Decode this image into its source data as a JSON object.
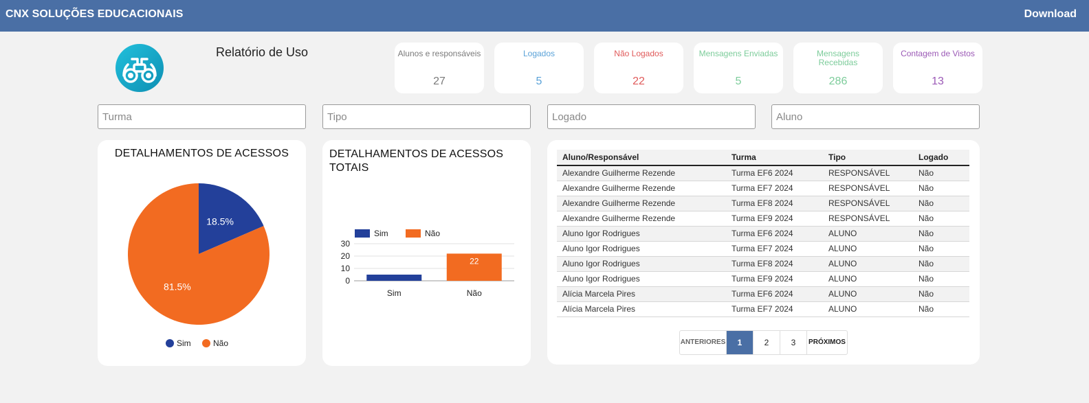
{
  "header": {
    "brand": "CNX SOLUÇÕES EDUCACIONAIS",
    "download": "Download"
  },
  "page": {
    "title": "Relatório de Uso"
  },
  "stats": [
    {
      "label": "Alunos e responsáveis",
      "value": "27",
      "color": "#7a7a7a"
    },
    {
      "label": "Logados",
      "value": "5",
      "color": "#5aa2d8"
    },
    {
      "label": "Não Logados",
      "value": "22",
      "color": "#e05a5a"
    },
    {
      "label": "Mensagens Enviadas",
      "value": "5",
      "color": "#7ccc9a"
    },
    {
      "label": "Mensagens Recebidas",
      "value": "286",
      "color": "#7ccc9a"
    },
    {
      "label": "Contagem de Vistos",
      "value": "13",
      "color": "#9b59b6"
    }
  ],
  "filters": {
    "turma": {
      "placeholder": "Turma",
      "value": ""
    },
    "tipo": {
      "placeholder": "Tipo",
      "value": ""
    },
    "logado": {
      "placeholder": "Logado",
      "value": ""
    },
    "aluno": {
      "placeholder": "Aluno",
      "value": ""
    }
  },
  "colors": {
    "sim": "#23409a",
    "nao": "#f26b21",
    "header": "#4a6fa5"
  },
  "chart_data": [
    {
      "type": "pie",
      "title": "DETALHAMENTOS DE ACESSOS",
      "categories": [
        "Sim",
        "Não"
      ],
      "values": [
        18.5,
        81.5
      ],
      "labels": [
        "18.5%",
        "81.5%"
      ],
      "legend": "bottom"
    },
    {
      "type": "bar",
      "title": "DETALHAMENTOS DE ACESSOS TOTAIS",
      "categories": [
        "Sim",
        "Não"
      ],
      "series": [
        {
          "name": "Sim",
          "values": [
            5,
            null
          ]
        },
        {
          "name": "Não",
          "values": [
            null,
            22
          ]
        }
      ],
      "data_labels": [
        "",
        "22"
      ],
      "yticks": [
        "0",
        "10",
        "20",
        "30"
      ],
      "ylim": [
        0,
        30
      ],
      "grid": true,
      "legend": "top"
    }
  ],
  "table": {
    "columns": [
      "Aluno/Responsável",
      "Turma",
      "Tipo",
      "Logado"
    ],
    "rows": [
      [
        "Alexandre Guilherme Rezende",
        "Turma EF6 2024",
        "RESPONSÁVEL",
        "Não"
      ],
      [
        "Alexandre Guilherme Rezende",
        "Turma EF7 2024",
        "RESPONSÁVEL",
        "Não"
      ],
      [
        "Alexandre Guilherme Rezende",
        "Turma EF8 2024",
        "RESPONSÁVEL",
        "Não"
      ],
      [
        "Alexandre Guilherme Rezende",
        "Turma EF9 2024",
        "RESPONSÁVEL",
        "Não"
      ],
      [
        "Aluno Igor Rodrigues",
        "Turma EF6 2024",
        "ALUNO",
        "Não"
      ],
      [
        "Aluno Igor Rodrigues",
        "Turma EF7 2024",
        "ALUNO",
        "Não"
      ],
      [
        "Aluno Igor Rodrigues",
        "Turma EF8 2024",
        "ALUNO",
        "Não"
      ],
      [
        "Aluno Igor Rodrigues",
        "Turma EF9 2024",
        "ALUNO",
        "Não"
      ],
      [
        "Alícia Marcela Pires",
        "Turma EF6 2024",
        "ALUNO",
        "Não"
      ],
      [
        "Alícia Marcela Pires",
        "Turma EF7 2024",
        "ALUNO",
        "Não"
      ]
    ]
  },
  "pagination": {
    "prev": "ANTERIORES",
    "pages": [
      "1",
      "2",
      "3"
    ],
    "active": "1",
    "next": "PRÓXIMOS"
  }
}
